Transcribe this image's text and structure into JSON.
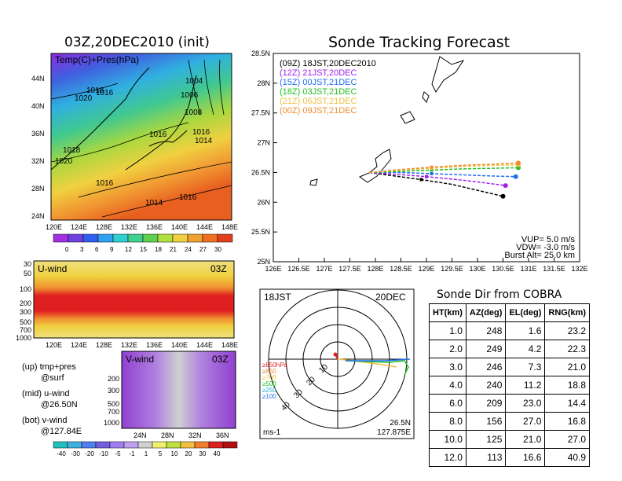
{
  "init_title": "03Z,20DEC2010 (init)",
  "map_label": "Temp(C)+Pres(hPa)",
  "pressure_labels": [
    "1018",
    "1020",
    "1016",
    "1004",
    "1006",
    "1008",
    "1016",
    "1014",
    "1018",
    "1020",
    "1016",
    "1016",
    "1016",
    "1014"
  ],
  "map_lon_ticks": [
    "120E",
    "124E",
    "128E",
    "132E",
    "136E",
    "140E",
    "144E",
    "148E"
  ],
  "map_lat_ticks": [
    "44N",
    "40N",
    "36N",
    "32N",
    "28N",
    "24N"
  ],
  "temp_colorbar": {
    "ticks": [
      "0",
      "3",
      "6",
      "9",
      "12",
      "15",
      "18",
      "21",
      "24",
      "27",
      "30"
    ]
  },
  "uwind": {
    "label": "U-wind",
    "time": "03Z",
    "p_ticks": [
      "30",
      "50",
      "100",
      "200",
      "300",
      "500",
      "700",
      "1000"
    ],
    "lon_ticks": [
      "120E",
      "124E",
      "128E",
      "132E",
      "136E",
      "140E",
      "144E",
      "148E"
    ]
  },
  "vwind": {
    "label": "V-wind",
    "time": "03Z",
    "p_ticks": [
      "200",
      "300",
      "500",
      "700",
      "1000"
    ],
    "lat_ticks": [
      "24N",
      "28N",
      "32N",
      "36N"
    ]
  },
  "notes": [
    "(up) tmp+pres",
    "@surf",
    "(mid) u-wind",
    "@26.50N",
    "(bot) v-wind",
    "@127.84E"
  ],
  "wind_colorbar": {
    "ticks": [
      "-40",
      "-30",
      "-20",
      "-10",
      "-5",
      "-1",
      "1",
      "5",
      "10",
      "20",
      "30",
      "40"
    ]
  },
  "track_title": "Sonde Tracking Forecast",
  "track_legend": [
    {
      "text": "(09Z)  18JST,20DEC2010",
      "color": "#000000"
    },
    {
      "text": "(12Z)  21JST,20DEC",
      "color": "#a020f0"
    },
    {
      "text": "(15Z)  00JST,21DEC",
      "color": "#1e6ef0"
    },
    {
      "text": "(18Z)  03JST,21DEC",
      "color": "#20c020"
    },
    {
      "text": "(21Z)  06JST,21DEC",
      "color": "#f0c040"
    },
    {
      "text": "(00Z)  09JST,21DEC",
      "color": "#f08c30"
    }
  ],
  "track_params": [
    "VUP=  5.0  m/s",
    "VDW= -3.0  m/s",
    "Burst Alt=  25.0  km"
  ],
  "chart_data": {
    "type": "line",
    "title": "Sonde Tracking Forecast",
    "xlim": [
      126,
      132
    ],
    "ylim": [
      25,
      28.5
    ],
    "x_ticks": [
      "126E",
      "126.5E",
      "127E",
      "127.5E",
      "128E",
      "128.5E",
      "129E",
      "129.5E",
      "130E",
      "130.5E",
      "131E",
      "131.5E",
      "132E"
    ],
    "y_ticks": [
      "25N",
      "25.5N",
      "26N",
      "26.5N",
      "27N",
      "27.5N",
      "28N",
      "28.5N"
    ],
    "series": [
      {
        "name": "(09Z)  18JST,20DEC2010",
        "color": "#000000",
        "lon": [
          127.88,
          128.3,
          128.9,
          129.5,
          130.1,
          130.5
        ],
        "lat": [
          26.5,
          26.45,
          26.38,
          26.3,
          26.18,
          26.1
        ]
      },
      {
        "name": "(12Z)  21JST,20DEC",
        "color": "#a020f0",
        "lon": [
          127.88,
          128.4,
          129.0,
          129.6,
          130.1,
          130.55
        ],
        "lat": [
          26.5,
          26.47,
          26.43,
          26.38,
          26.33,
          26.28
        ]
      },
      {
        "name": "(15Z)  00JST,21DEC",
        "color": "#1e6ef0",
        "lon": [
          127.88,
          128.5,
          129.1,
          129.7,
          130.3,
          130.75
        ],
        "lat": [
          26.5,
          26.5,
          26.48,
          26.46,
          26.44,
          26.43
        ]
      },
      {
        "name": "(18Z)  03JST,21DEC",
        "color": "#20c020",
        "lon": [
          127.88,
          128.5,
          129.1,
          129.7,
          130.3,
          130.8
        ],
        "lat": [
          26.5,
          26.52,
          26.54,
          26.56,
          26.57,
          26.58
        ]
      },
      {
        "name": "(21Z)  06JST,21DEC",
        "color": "#f0c040",
        "lon": [
          127.88,
          128.5,
          129.1,
          129.7,
          130.3,
          130.8
        ],
        "lat": [
          26.5,
          26.54,
          26.57,
          26.6,
          26.62,
          26.63
        ]
      },
      {
        "name": "(00Z)  09JST,21DEC",
        "color": "#f08c30",
        "lon": [
          127.88,
          128.5,
          129.1,
          129.7,
          130.3,
          130.8
        ],
        "lat": [
          26.5,
          26.55,
          26.59,
          26.62,
          26.64,
          26.66
        ]
      }
    ]
  },
  "polar": {
    "time": "18JST",
    "date": "20DEC",
    "ring_labels": [
      "10",
      "20",
      "30",
      "40"
    ],
    "levels": [
      {
        "text": "≥850hPa",
        "color": "#e02020"
      },
      {
        "text": "≥850",
        "color": "#f08c30"
      },
      {
        "text": "≥700",
        "color": "#f0c040"
      },
      {
        "text": "≥500",
        "color": "#20c020"
      },
      {
        "text": "≥250",
        "color": "#20b0d0"
      },
      {
        "text": "≥100",
        "color": "#1e6ef0"
      }
    ],
    "unit": "ms-1",
    "coord1": "26.5N",
    "coord2": "127.875E"
  },
  "sonde_table": {
    "title": "Sonde Dir from COBRA",
    "headers": [
      "HT(km)",
      "AZ(deg)",
      "EL(deg)",
      "RNG(km)"
    ],
    "rows": [
      [
        "1.0",
        "248",
        "1.6",
        "23.2"
      ],
      [
        "2.0",
        "249",
        "4.2",
        "22.3"
      ],
      [
        "3.0",
        "246",
        "7.3",
        "21.0"
      ],
      [
        "4.0",
        "240",
        "11.2",
        "18.8"
      ],
      [
        "6.0",
        "209",
        "23.0",
        "14.4"
      ],
      [
        "8.0",
        "156",
        "27.0",
        "16.8"
      ],
      [
        "10.0",
        "125",
        "21.0",
        "27.0"
      ],
      [
        "12.0",
        "113",
        "16.6",
        "40.9"
      ]
    ]
  }
}
